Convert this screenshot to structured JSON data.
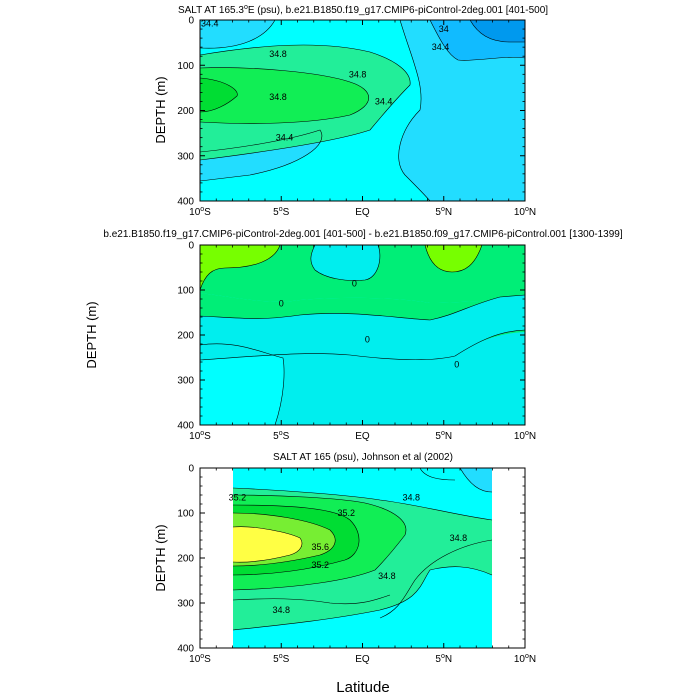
{
  "figure": {
    "x_axis_label": "Latitude",
    "mid_y_axis_label": "DEPTH (m)"
  },
  "chart_data": [
    {
      "type": "contour",
      "title": "SALT AT 165.3°E (psu), b.e21.B1850.f19_g17.CMIP6-piControl-2deg.001 [401-500]",
      "title_parts": {
        "pre": "SALT AT 165.3",
        "sup": "o",
        "post": "E (psu), b.e21.B1850.f19_g17.CMIP6-piControl-2deg.001 [401-500]"
      },
      "ylabel": "DEPTH (m)",
      "xlim": [
        -10,
        10
      ],
      "ylim": [
        0,
        400
      ],
      "y_reversed": true,
      "x_ticks": [
        -10,
        -5,
        0,
        5,
        10
      ],
      "y_ticks": [
        0,
        100,
        200,
        300,
        400
      ],
      "contour_labels": [
        {
          "text": "34.4",
          "lat": -9.4,
          "depth": 8
        },
        {
          "text": "34.8",
          "lat": -5.2,
          "depth": 75
        },
        {
          "text": "34.8",
          "lat": -0.3,
          "depth": 120
        },
        {
          "text": "34.8",
          "lat": -5.2,
          "depth": 170
        },
        {
          "text": "34.4",
          "lat": -4.8,
          "depth": 260
        },
        {
          "text": "34.4",
          "lat": 1.3,
          "depth": 180
        },
        {
          "text": "34.4",
          "lat": 4.8,
          "depth": 60
        },
        {
          "text": "34",
          "lat": 5.0,
          "depth": 20
        }
      ]
    },
    {
      "type": "contour",
      "title": "b.e21.B1850.f19_g17.CMIP6-piControl-2deg.001 [401-500] - b.e21.B1850.f09_g17.CMIP6-piControl.001 [1300-1399]",
      "xlim": [
        -10,
        10
      ],
      "ylim": [
        0,
        400
      ],
      "y_reversed": true,
      "x_ticks": [
        -10,
        -5,
        0,
        5,
        10
      ],
      "y_ticks": [
        0,
        100,
        200,
        300,
        400
      ],
      "contour_labels": [
        {
          "text": "0",
          "lat": -5.0,
          "depth": 130
        },
        {
          "text": "0",
          "lat": -0.5,
          "depth": 85
        },
        {
          "text": "0",
          "lat": 0.3,
          "depth": 210
        },
        {
          "text": "0",
          "lat": 5.8,
          "depth": 265
        }
      ]
    },
    {
      "type": "contour",
      "title": "SALT AT 165 (psu), Johnson et al (2002)",
      "ylabel": "DEPTH (m)",
      "xlim": [
        -10,
        10
      ],
      "ylim": [
        0,
        400
      ],
      "y_reversed": true,
      "x_ticks": [
        -10,
        -5,
        0,
        5,
        10
      ],
      "y_ticks": [
        0,
        100,
        200,
        300,
        400
      ],
      "data_lat_range": [
        -8,
        8
      ],
      "contour_labels": [
        {
          "text": "35.2",
          "lat": -7.7,
          "depth": 65
        },
        {
          "text": "35.2",
          "lat": -1.0,
          "depth": 100
        },
        {
          "text": "35.6",
          "lat": -2.6,
          "depth": 175
        },
        {
          "text": "35.2",
          "lat": -2.6,
          "depth": 215
        },
        {
          "text": "34.8",
          "lat": 3.0,
          "depth": 65
        },
        {
          "text": "34.8",
          "lat": 5.9,
          "depth": 155
        },
        {
          "text": "34.8",
          "lat": 1.5,
          "depth": 240
        },
        {
          "text": "34.8",
          "lat": -5.0,
          "depth": 315
        }
      ]
    }
  ],
  "tick_labels": {
    "x": [
      {
        "num": "10",
        "sup": "o",
        "hemi": "S"
      },
      {
        "num": "5",
        "sup": "o",
        "hemi": "S"
      },
      {
        "num": "EQ",
        "sup": "",
        "hemi": ""
      },
      {
        "num": "5",
        "sup": "o",
        "hemi": "N"
      },
      {
        "num": "10",
        "sup": "o",
        "hemi": "N"
      }
    ],
    "y": [
      "0",
      "100",
      "200",
      "300",
      "400"
    ]
  },
  "colors": {
    "level_below_34": "#0099ee",
    "level_34": "#11bbff",
    "level_34_4": "#22ddff",
    "level_34_6": "#00ffff",
    "level_34_8": "#22ee99",
    "level_35": "#11ee55",
    "level_35_2": "#00dd33",
    "level_35_4": "#77ee33",
    "level_35_6": "#ffff44",
    "diff_positive": "#77ff00",
    "diff_near_zero": "#00ee77",
    "diff_negative": "#00eeee",
    "diff_more_negative": "#00ffff"
  }
}
